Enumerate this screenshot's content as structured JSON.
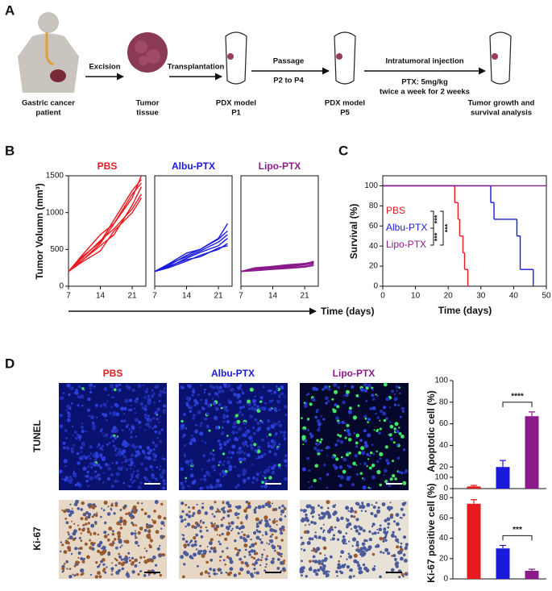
{
  "panel_labels": [
    "A",
    "B",
    "C",
    "D"
  ],
  "diagram": {
    "steps": [
      {
        "lines": [
          "Gastric cancer",
          "patient"
        ]
      },
      {
        "lines": [
          "Tumor",
          "tissue"
        ]
      },
      {
        "lines": [
          "PDX model",
          "P1"
        ]
      },
      {
        "lines": [
          "PDX model",
          "P5"
        ]
      },
      {
        "lines": [
          "Tumor growth and",
          "survival analysis"
        ]
      }
    ],
    "arrows": [
      {
        "lines": [
          "Excision"
        ]
      },
      {
        "lines": [
          "Transplantation"
        ]
      },
      {
        "lines": [
          "Passage",
          "P2 to P4"
        ]
      },
      {
        "lines": [
          "Intratumoral injection",
          "PTX: 5mg/kg",
          "twice a week for 2 weeks"
        ]
      }
    ]
  },
  "images": {
    "columns": [
      "PBS",
      "Albu-PTX",
      "Lipo-PTX"
    ],
    "rows": [
      "TUNEL",
      "Ki-67"
    ]
  },
  "chart_data": [
    {
      "type": "line",
      "title": "PBS",
      "color": "#e8191f",
      "ylabel": "Tumor Volumn (mm³)",
      "xlabel": "Time (days)",
      "x": [
        7,
        10,
        14,
        17,
        21,
        23
      ],
      "xlim": [
        7,
        24
      ],
      "xticks": [
        7,
        14,
        21
      ],
      "ylim": [
        0,
        1500
      ],
      "yticks": [
        0,
        500,
        1000,
        1500
      ],
      "series": [
        {
          "values": [
            200,
            350,
            580,
            850,
            1200,
            1500
          ]
        },
        {
          "values": [
            200,
            400,
            600,
            900,
            1300,
            1450
          ]
        },
        {
          "values": [
            200,
            350,
            550,
            700,
            1100,
            1350
          ]
        },
        {
          "values": [
            200,
            380,
            620,
            780,
            1050,
            1250
          ]
        },
        {
          "values": [
            200,
            330,
            480,
            750,
            1000,
            1200
          ]
        },
        {
          "values": [
            200,
            420,
            700,
            850,
            1250,
            1400
          ]
        }
      ]
    },
    {
      "type": "line",
      "title": "Albu-PTX",
      "color": "#1a1adb",
      "x": [
        7,
        10,
        14,
        17,
        21,
        23
      ],
      "xlim": [
        7,
        24
      ],
      "xticks": [
        7,
        14,
        21
      ],
      "ylim": [
        0,
        1500
      ],
      "series": [
        {
          "values": [
            200,
            280,
            420,
            500,
            650,
            850
          ]
        },
        {
          "values": [
            200,
            300,
            400,
            480,
            600,
            700
          ]
        },
        {
          "values": [
            200,
            260,
            380,
            460,
            550,
            650
          ]
        },
        {
          "values": [
            200,
            250,
            340,
            420,
            500,
            580
          ]
        },
        {
          "values": [
            200,
            270,
            360,
            400,
            520,
            550
          ]
        },
        {
          "values": [
            200,
            300,
            450,
            500,
            640,
            750
          ]
        }
      ]
    },
    {
      "type": "line",
      "title": "Lipo-PTX",
      "color": "#8b1a8b",
      "x": [
        7,
        10,
        14,
        17,
        21,
        23
      ],
      "xlim": [
        7,
        24
      ],
      "xticks": [
        7,
        14,
        21
      ],
      "ylim": [
        0,
        1500
      ],
      "series": [
        {
          "values": [
            200,
            240,
            260,
            270,
            300,
            340
          ]
        },
        {
          "values": [
            200,
            230,
            250,
            260,
            290,
            320
          ]
        },
        {
          "values": [
            200,
            220,
            240,
            250,
            270,
            300
          ]
        },
        {
          "values": [
            200,
            210,
            230,
            240,
            260,
            280
          ]
        },
        {
          "values": [
            200,
            250,
            270,
            290,
            310,
            330
          ]
        },
        {
          "values": [
            200,
            220,
            260,
            280,
            300,
            310
          ]
        }
      ]
    },
    {
      "type": "step",
      "ylabel": "Survival (%)",
      "xlabel": "Time (days)",
      "xlim": [
        0,
        50
      ],
      "xticks": [
        0,
        10,
        20,
        30,
        40,
        50
      ],
      "ylim": [
        0,
        110
      ],
      "yticks": [
        0,
        20,
        40,
        60,
        80,
        100
      ],
      "series": [
        {
          "name": "PBS",
          "color": "#e8191f",
          "x": [
            0,
            22,
            23,
            23.5,
            24.5,
            25,
            26
          ],
          "values": [
            100,
            83.3,
            66.7,
            50,
            33.3,
            16.7,
            0
          ]
        },
        {
          "name": "Albu-PTX",
          "color": "#1a1adb",
          "x": [
            0,
            33,
            34,
            41,
            42,
            46
          ],
          "values": [
            100,
            83.3,
            66.7,
            50,
            16.7,
            0
          ]
        },
        {
          "name": "Lipo-PTX",
          "color": "#8b1a8b",
          "x": [
            0,
            50
          ],
          "values": [
            100,
            100
          ]
        }
      ],
      "significance": [
        "***",
        "***",
        "***"
      ]
    },
    {
      "type": "bar",
      "ylabel": "Apoptotic cell (%)",
      "categories": [
        null,
        null,
        null
      ],
      "values": [
        2,
        20,
        67
      ],
      "errors": [
        1,
        6,
        4
      ],
      "colors": [
        "#e8191f",
        "#1a1adb",
        "#8b1a8b"
      ],
      "ylim": [
        0,
        100
      ],
      "yticks": [
        0,
        20,
        40,
        60,
        80,
        100
      ],
      "significance": "****"
    },
    {
      "type": "bar",
      "ylabel": "Ki-67 positive cell (%)",
      "categories": [
        null,
        null,
        null
      ],
      "values": [
        74,
        30,
        8
      ],
      "errors": [
        4,
        3,
        1.5
      ],
      "colors": [
        "#e8191f",
        "#1a1adb",
        "#8b1a8b"
      ],
      "ylim": [
        0,
        100
      ],
      "yticks": [
        0,
        20,
        40,
        60,
        80,
        100
      ],
      "significance": "***"
    }
  ]
}
